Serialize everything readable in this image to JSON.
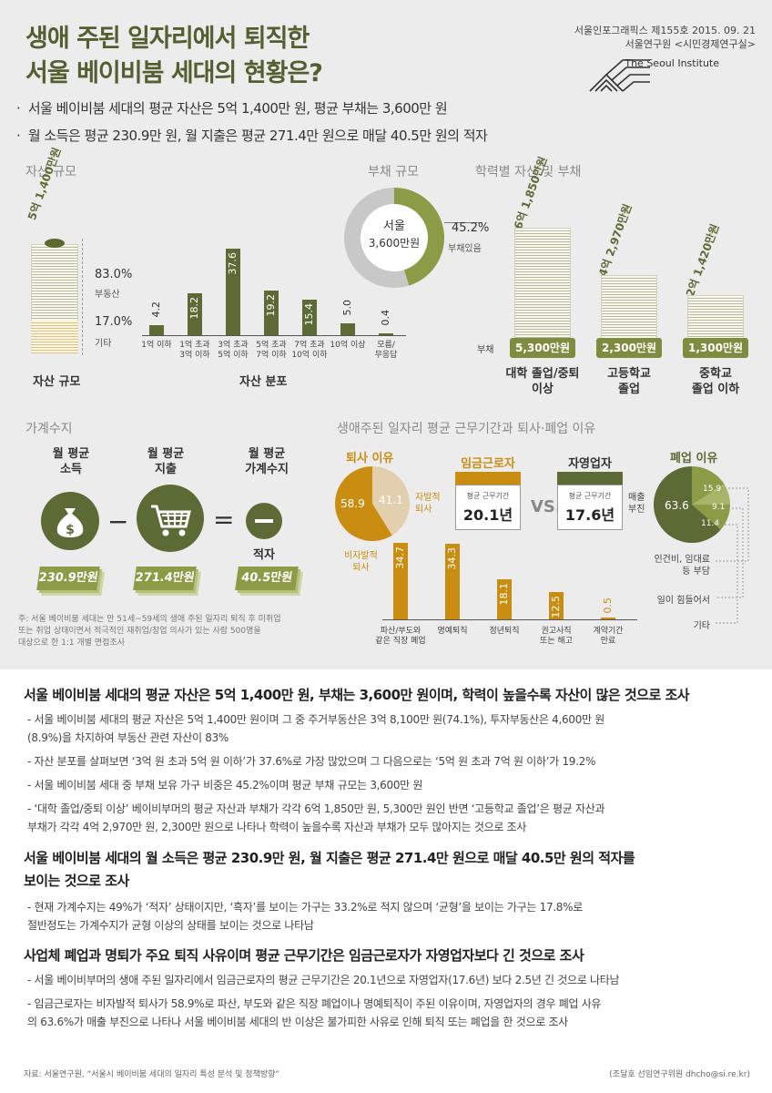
{
  "header": {
    "title_line1": "생애 주된 일자리에서 퇴직한",
    "title_line2": "서울 베이비붐 세대의 현황은?",
    "pub_line1": "서울인포그래픽스 제155호 2015. 09. 21",
    "pub_line2": "서울연구원 <시민경제연구실>",
    "logo_text": "The Seoul Institute"
  },
  "summary": [
    "서울 베이비붐 세대의 평균 자산은 5억 1,400만 원, 평균 부채는 3,600만 원",
    "월 소득은 평균 230.9만 원, 월 지출은 평균 271.4만 원으로 매달 40.5만 원의 적자"
  ],
  "assets": {
    "section": "자산 규모",
    "total": "5억 1,400만원",
    "real_estate_pct": "83.0%",
    "real_estate_label": "부동산",
    "other_pct": "17.0%",
    "other_label": "기타",
    "caption": "자산 규모"
  },
  "distribution": {
    "caption": "자산 분포",
    "bars": [
      {
        "value": "4.2",
        "num": 4.2,
        "label": "1억 이하"
      },
      {
        "value": "18.2",
        "num": 18.2,
        "label": "1억 초과\n3억 이하"
      },
      {
        "value": "37.6",
        "num": 37.6,
        "label": "3억 초과\n5억 이하"
      },
      {
        "value": "19.2",
        "num": 19.2,
        "label": "5억 초과\n7억 이하"
      },
      {
        "value": "15.4",
        "num": 15.4,
        "label": "7억 초과\n10억 이하"
      },
      {
        "value": "5.0",
        "num": 5.0,
        "label": "10억 이상"
      },
      {
        "value": "0.4",
        "num": 0.4,
        "label": "모름/\n무응답"
      }
    ]
  },
  "debt": {
    "section": "부채 규모",
    "center_line1": "서울",
    "center_line2": "3,600만원",
    "pct": "45.2%",
    "pct_label": "부채있음"
  },
  "education": {
    "section": "학력별 자산 및 부채",
    "debt_label": "부채",
    "groups": [
      {
        "asset": "6억 1,850만원",
        "debt": "5,300만원",
        "label": "대학 졸업/중퇴\n이상"
      },
      {
        "asset": "4억 2,970만원",
        "debt": "2,300만원",
        "label": "고등학교\n졸업"
      },
      {
        "asset": "2억 1,420만원",
        "debt": "1,300만원",
        "label": "중학교\n졸업 이하"
      }
    ]
  },
  "household": {
    "section": "가계수지",
    "income_label": "월 평균\n소득",
    "expense_label": "월 평균\n지출",
    "balance_label": "월 평균\n가계수지",
    "income": "230.9만원",
    "expense": "271.4만원",
    "balance": "40.5만원",
    "deficit": "적자",
    "minus": "−",
    "equals": "=",
    "note": "주: 서울 베이비붐 세대는 만 51세~59세의 생애 주된 일자리 퇴직 후 미취업\n또는 취업 상태이면서 적극적인 재취업/창업 의사가 있는 사람 500명을\n대상으로 한 1:1 개별 면접조사"
  },
  "tenure": {
    "section": "생애주된 일자리 평균 근무기간과 퇴사·폐업 이유",
    "resign_title": "퇴사 이유",
    "voluntary": "41.1",
    "involuntary": "58.9",
    "voluntary_label": "자발적\n퇴사",
    "involuntary_label": "비자발적\n퇴사",
    "wage_title": "임금근로자",
    "self_title": "자영업자",
    "card_label": "평균 근무기간",
    "wage_years": "20.1년",
    "self_years": "17.6년",
    "vs": "VS.",
    "closure_title": "폐업 이유",
    "closure_main": "63.6",
    "closure_main_label": "매출\n부진",
    "closure_a": "15.9",
    "closure_b": "9.1",
    "closure_c": "11.4",
    "closure_a_label": "인건비, 임대료\n등 부담",
    "closure_b_label": "일이 힘들어서",
    "closure_c_label": "기타",
    "reasons": [
      {
        "value": "34.7",
        "num": 34.7,
        "label": "파산/부도와\n같은 직장 폐업"
      },
      {
        "value": "34.3",
        "num": 34.3,
        "label": "명예퇴직"
      },
      {
        "value": "18.1",
        "num": 18.1,
        "label": "정년퇴직"
      },
      {
        "value": "12.5",
        "num": 12.5,
        "label": "권고사직\n또는 해고"
      },
      {
        "value": "0.5",
        "num": 0.5,
        "label": "계약기간\n만료"
      }
    ]
  },
  "chart_data": [
    {
      "type": "bar",
      "title": "자산 분포",
      "categories": [
        "1억 이하",
        "1억 초과 3억 이하",
        "3억 초과 5억 이하",
        "5억 초과 7억 이하",
        "7억 초과 10억 이하",
        "10억 이상",
        "모름/무응답"
      ],
      "values": [
        4.2,
        18.2,
        37.6,
        19.2,
        15.4,
        5.0,
        0.4
      ]
    },
    {
      "type": "pie",
      "title": "퇴사 이유",
      "categories": [
        "비자발적 퇴사",
        "자발적 퇴사"
      ],
      "values": [
        58.9,
        41.1
      ]
    },
    {
      "type": "pie",
      "title": "폐업 이유",
      "categories": [
        "매출 부진",
        "인건비, 임대료 등 부담",
        "일이 힘들어서",
        "기타"
      ],
      "values": [
        63.6,
        15.9,
        9.1,
        11.4
      ]
    },
    {
      "type": "bar",
      "categories": [
        "파산/부도와 같은 직장 폐업",
        "명예퇴직",
        "정년퇴직",
        "권고사직 또는 해고",
        "계약기간 만료"
      ],
      "values": [
        34.7,
        34.3,
        18.1,
        12.5,
        0.5
      ]
    }
  ],
  "body": {
    "h1": "서울 베이비붐 세대의 평균 자산은 5억 1,400만 원, 부채는 3,600만 원이며, 학력이 높을수록 자산이 많은 것으로 조사",
    "p1": "- 서울 베이비붐 세대의 평균 자산은 5억 1,400만 원이며 그 중 주거부동산은 3억 8,100만 원(74.1%), 투자부동산은 4,600만 원\n  (8.9%)을 차지하여 부동산 관련 자산이 83%",
    "p2": "- 자산 분포를 살펴보면 ‘3억 원 초과 5억 원 이하’가 37.6%로 가장 많았으며 그 다음으로는 ‘5억 원 초과 7억 원 이하’가 19.2%",
    "p3": "- 서울 베이비붐 세대 중 부채 보유 가구 비중은 45.2%이며 평균 부채 규모는 3,600만 원",
    "p4": "-  ‘대학 졸업/중퇴 이상’ 베이비부머의 평균 자산과 부채가 각각 6억 1,850만 원, 5,300만 원인 반면 ‘고등학교 졸업’은 평균 자산과\n   부채가 각각 4억 2,970만 원, 2,300만 원으로 나타나 학력이 높을수록 자산과 부채가 모두 많아지는 것으로 조사",
    "h2": "서울 베이비붐 세대의 월 소득은 평균 230.9만 원, 월 지출은 평균 271.4만 원으로 매달 40.5만 원의 적자를\n보이는 것으로 조사",
    "p5": "- 현재 가계수지는 49%가 ‘적자’ 상태이지만, ‘흑자’를 보이는 가구는 33.2%로 적지 않으며 ‘균형’을 보이는 가구는 17.8%로\n  절반정도는 가계수지가 균형 이상의 상태를 보이는 것으로 나타남",
    "h3": "사업체 폐업과 명퇴가 주요 퇴직 사유이며 평균 근무기간은 임금근로자가 자영업자보다 긴 것으로 조사",
    "p6": "- 서울 베이비부머의 생애 주된 일자리에서 임금근로자의 평균 근무기간은 20.1년으로 자영업자(17.6년) 보다 2.5년 긴 것으로 나타남",
    "p7": "- 임금근로자는 비자발적 퇴사가 58.9%로 파산, 부도와 같은 직장 폐업이나 명예퇴직이 주된 이유이며, 자영업자의 경우 폐업 사유\n  의 63.6%가 매출 부진으로 나타나 서울 베이비붐 세대의 반 이상은 불가피한 사유로 인해 퇴직 또는 폐업을 한 것으로 조사"
  },
  "footer": {
    "source": "자료: 서울연구원, “서울시 베이비붐 세대의 일자리 특성 분석 및 정책방향”",
    "author": "(조달호 선임연구위원 dhcho@si.re.kr)"
  }
}
